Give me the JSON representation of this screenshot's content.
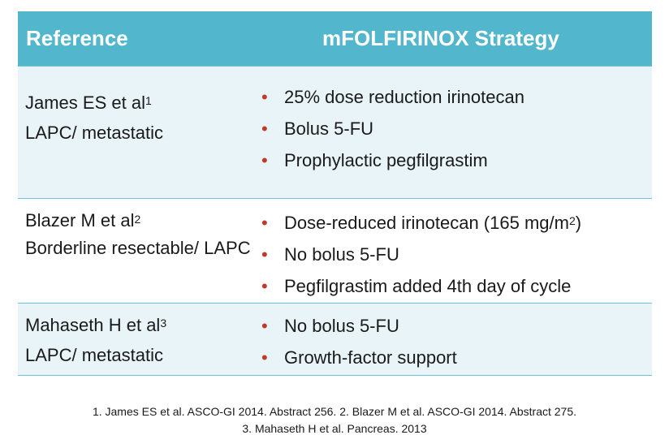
{
  "table": {
    "headers": {
      "reference": "Reference",
      "strategy": "mFOLFIRINOX Strategy"
    },
    "rows": [
      {
        "reference": {
          "author": "James ES et al",
          "sup": "1",
          "population": "LAPC/ metastatic"
        },
        "strategy": [
          {
            "text": "25% dose reduction irinotecan"
          },
          {
            "text": "Bolus 5-FU"
          },
          {
            "text": "Prophylactic pegfilgrastim"
          }
        ]
      },
      {
        "reference": {
          "author": "Blazer M et al",
          "sup": "2",
          "population": "Borderline resectable/ LAPC"
        },
        "strategy": [
          {
            "text": "Dose-reduced irinotecan (165 mg/m",
            "sup": "2",
            "after": ")"
          },
          {
            "text": "No bolus 5-FU"
          },
          {
            "text": "Pegfilgrastim added 4th day of cycle"
          }
        ]
      },
      {
        "reference": {
          "author": "Mahaseth H et al",
          "sup": "3",
          "population": "LAPC/ metastatic"
        },
        "strategy": [
          {
            "text": "No bolus 5-FU"
          },
          {
            "text": "Growth-factor support"
          }
        ]
      }
    ]
  },
  "footnotes": {
    "line1": "1. James ES et al. ASCO-GI 2014. Abstract 256.  2. Blazer M et al. ASCO-GI 2014. Abstract 275.",
    "line2": "3. Mahaseth H et al. Pancreas. 2013"
  },
  "colors": {
    "header_bg": "#52b7cd",
    "header_text": "#ffffff",
    "row_shaded": "#e9f4f8",
    "bullet": "#c0392b",
    "border": "#6cc3d6"
  },
  "icons": {
    "bullet": "bullet-dot"
  }
}
